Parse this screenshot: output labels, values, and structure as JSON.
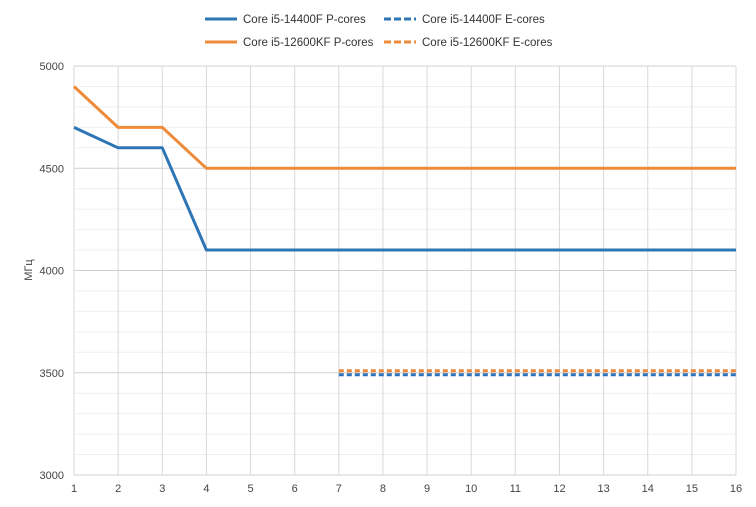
{
  "chart_data": {
    "type": "line",
    "title": "",
    "xlabel": "",
    "ylabel": "МГц",
    "x": [
      1,
      2,
      3,
      4,
      5,
      6,
      7,
      8,
      9,
      10,
      11,
      12,
      13,
      14,
      15,
      16
    ],
    "xlim": [
      1,
      16
    ],
    "ylim": [
      3000,
      5000
    ],
    "y_major_ticks": [
      3000,
      3500,
      4000,
      4500,
      5000
    ],
    "y_minor_step": 100,
    "grid": true,
    "legend_position": "top",
    "series": [
      {
        "name": "Core i5-14400F P-cores",
        "style": "solid",
        "color": "#2E75B6",
        "values": [
          4700,
          4600,
          4600,
          4100,
          4100,
          4100,
          4100,
          4100,
          4100,
          4100,
          4100,
          4100,
          4100,
          4100,
          4100,
          4100
        ]
      },
      {
        "name": "Core i5-14400F E-cores",
        "style": "dashed",
        "color": "#2E75B6",
        "values": [
          null,
          null,
          null,
          null,
          null,
          null,
          3500,
          3500,
          3500,
          3500,
          3500,
          3500,
          3500,
          3500,
          3500,
          3500
        ]
      },
      {
        "name": "Core i5-12600KF P-cores",
        "style": "solid",
        "color": "#ED8B3A",
        "values": [
          4900,
          4700,
          4700,
          4500,
          4500,
          4500,
          4500,
          4500,
          4500,
          4500,
          4500,
          4500,
          4500,
          4500,
          4500,
          4500
        ]
      },
      {
        "name": "Core i5-12600KF E-cores",
        "style": "dashed",
        "color": "#ED8B3A",
        "values": [
          null,
          null,
          null,
          null,
          null,
          null,
          3500,
          3500,
          3500,
          3500,
          3500,
          3500,
          3500,
          3500,
          3500,
          3500
        ]
      }
    ]
  }
}
